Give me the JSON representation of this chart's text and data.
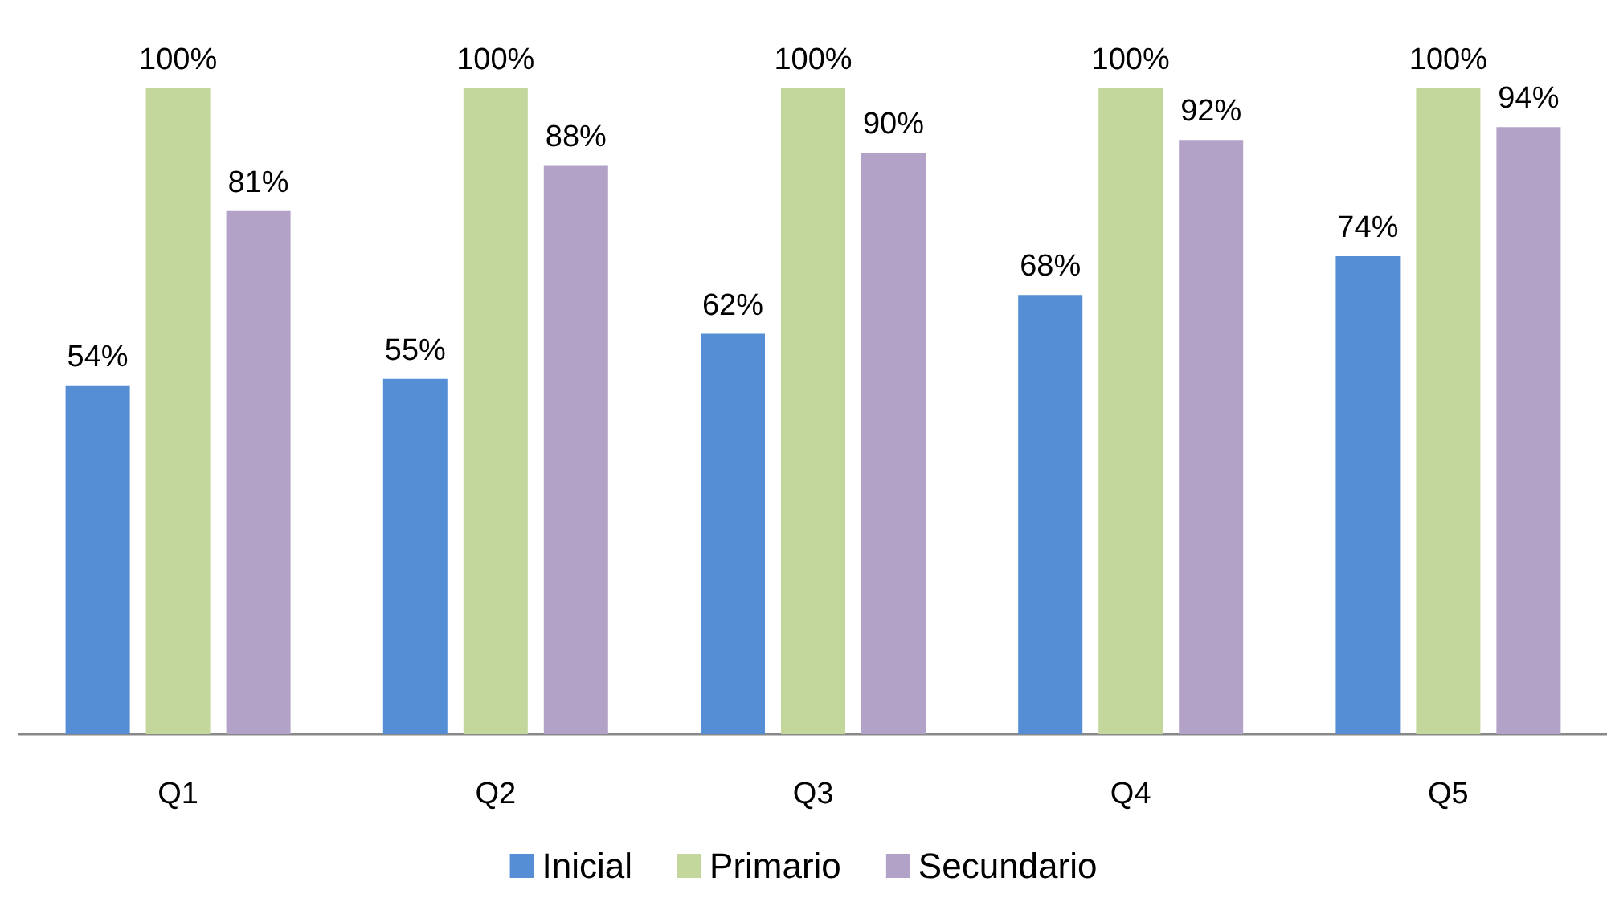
{
  "chart_data": {
    "type": "bar",
    "categories": [
      "Q1",
      "Q2",
      "Q3",
      "Q4",
      "Q5"
    ],
    "series": [
      {
        "name": "Inicial",
        "color": "#558ed5",
        "values": [
          54,
          55,
          62,
          68,
          74
        ],
        "value_labels": [
          "54%",
          "55%",
          "62%",
          "68%",
          "74%"
        ]
      },
      {
        "name": "Primario",
        "color": "#c3d69b",
        "values": [
          100,
          100,
          100,
          100,
          100
        ],
        "value_labels": [
          "100%",
          "100%",
          "100%",
          "100%",
          "100%"
        ]
      },
      {
        "name": "Secundario",
        "color": "#b3a2c7",
        "values": [
          81,
          88,
          90,
          92,
          94
        ],
        "value_labels": [
          "81%",
          "88%",
          "90%",
          "92%",
          "94%"
        ]
      }
    ],
    "legend": "bottom"
  }
}
